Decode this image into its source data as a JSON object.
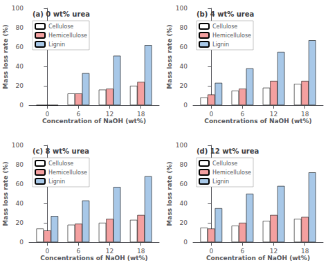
{
  "chart_data": [
    {
      "type": "bar",
      "title": "(a) 0 wt% urea",
      "x_label": "Concentration of NaOH (wt%)",
      "y_label": "Mass loss rate (%)",
      "x": [
        0,
        6,
        12,
        18
      ],
      "xlim": [
        -3.5,
        21.5
      ],
      "xticks": [
        0,
        6,
        12,
        18
      ],
      "ylim": [
        0,
        100
      ],
      "yticks": [
        0,
        20,
        40,
        60,
        80,
        100
      ],
      "grid": false,
      "legend": "upper left",
      "series": [
        {
          "name": "Cellulose",
          "color": "#ffffff",
          "values": [
            0,
            12,
            16,
            20
          ]
        },
        {
          "name": "Hemicellulose",
          "color": "#f4a0a0",
          "values": [
            0,
            12,
            17,
            24
          ]
        },
        {
          "name": "Lignin",
          "color": "#a8c8e8",
          "values": [
            0,
            33,
            51,
            62
          ]
        }
      ]
    },
    {
      "type": "bar",
      "title": "(b) 4 wt% urea",
      "x_label": "Concentrations of NaOH (wt%)",
      "y_label": "Mass loss rate (%)",
      "x": [
        0,
        6,
        12,
        18
      ],
      "xlim": [
        -3.5,
        21.5
      ],
      "xticks": [
        0,
        6,
        12,
        18
      ],
      "ylim": [
        0,
        100
      ],
      "yticks": [
        0,
        20,
        40,
        60,
        80,
        100
      ],
      "grid": false,
      "legend": "upper left",
      "series": [
        {
          "name": "Cellulose",
          "color": "#ffffff",
          "values": [
            8,
            15,
            18,
            22
          ]
        },
        {
          "name": "Hemicellulose",
          "color": "#f4a0a0",
          "values": [
            11,
            17,
            25,
            25
          ]
        },
        {
          "name": "Lignin",
          "color": "#a8c8e8",
          "values": [
            23,
            38,
            55,
            67
          ]
        }
      ]
    },
    {
      "type": "bar",
      "title": "(c) 8 wt% urea",
      "x_label": "Concentrations of NaOH (wt%)",
      "y_label": "Mass loss rate (%)",
      "x": [
        0,
        6,
        12,
        18
      ],
      "xlim": [
        -3.5,
        21.5
      ],
      "xticks": [
        0,
        6,
        12,
        18
      ],
      "ylim": [
        0,
        100
      ],
      "yticks": [
        0,
        20,
        40,
        60,
        80,
        100
      ],
      "grid": false,
      "legend": "upper left",
      "series": [
        {
          "name": "Cellulose",
          "color": "#ffffff",
          "values": [
            14,
            18,
            20,
            23
          ]
        },
        {
          "name": "Hemicellulose",
          "color": "#f4a0a0",
          "values": [
            12,
            19,
            24,
            28
          ]
        },
        {
          "name": "Lignin",
          "color": "#a8c8e8",
          "values": [
            27,
            43,
            57,
            68
          ]
        }
      ]
    },
    {
      "type": "bar",
      "title": "(d) 12 wt% urea",
      "x_label": "Concentration of NaOH (wt%)",
      "y_label": "Mass loss rate (%)",
      "x": [
        0,
        6,
        12,
        18
      ],
      "xlim": [
        -3.5,
        21.5
      ],
      "xticks": [
        0,
        6,
        12,
        18
      ],
      "ylim": [
        0,
        100
      ],
      "yticks": [
        0,
        20,
        40,
        60,
        80,
        100
      ],
      "grid": false,
      "legend": "upper left",
      "series": [
        {
          "name": "Cellulose",
          "color": "#ffffff",
          "values": [
            15,
            17,
            22,
            24
          ]
        },
        {
          "name": "Hemicellulose",
          "color": "#f4a0a0",
          "values": [
            14,
            20,
            28,
            26
          ]
        },
        {
          "name": "Lignin",
          "color": "#a8c8e8",
          "values": [
            35,
            50,
            58,
            72
          ]
        }
      ]
    }
  ]
}
